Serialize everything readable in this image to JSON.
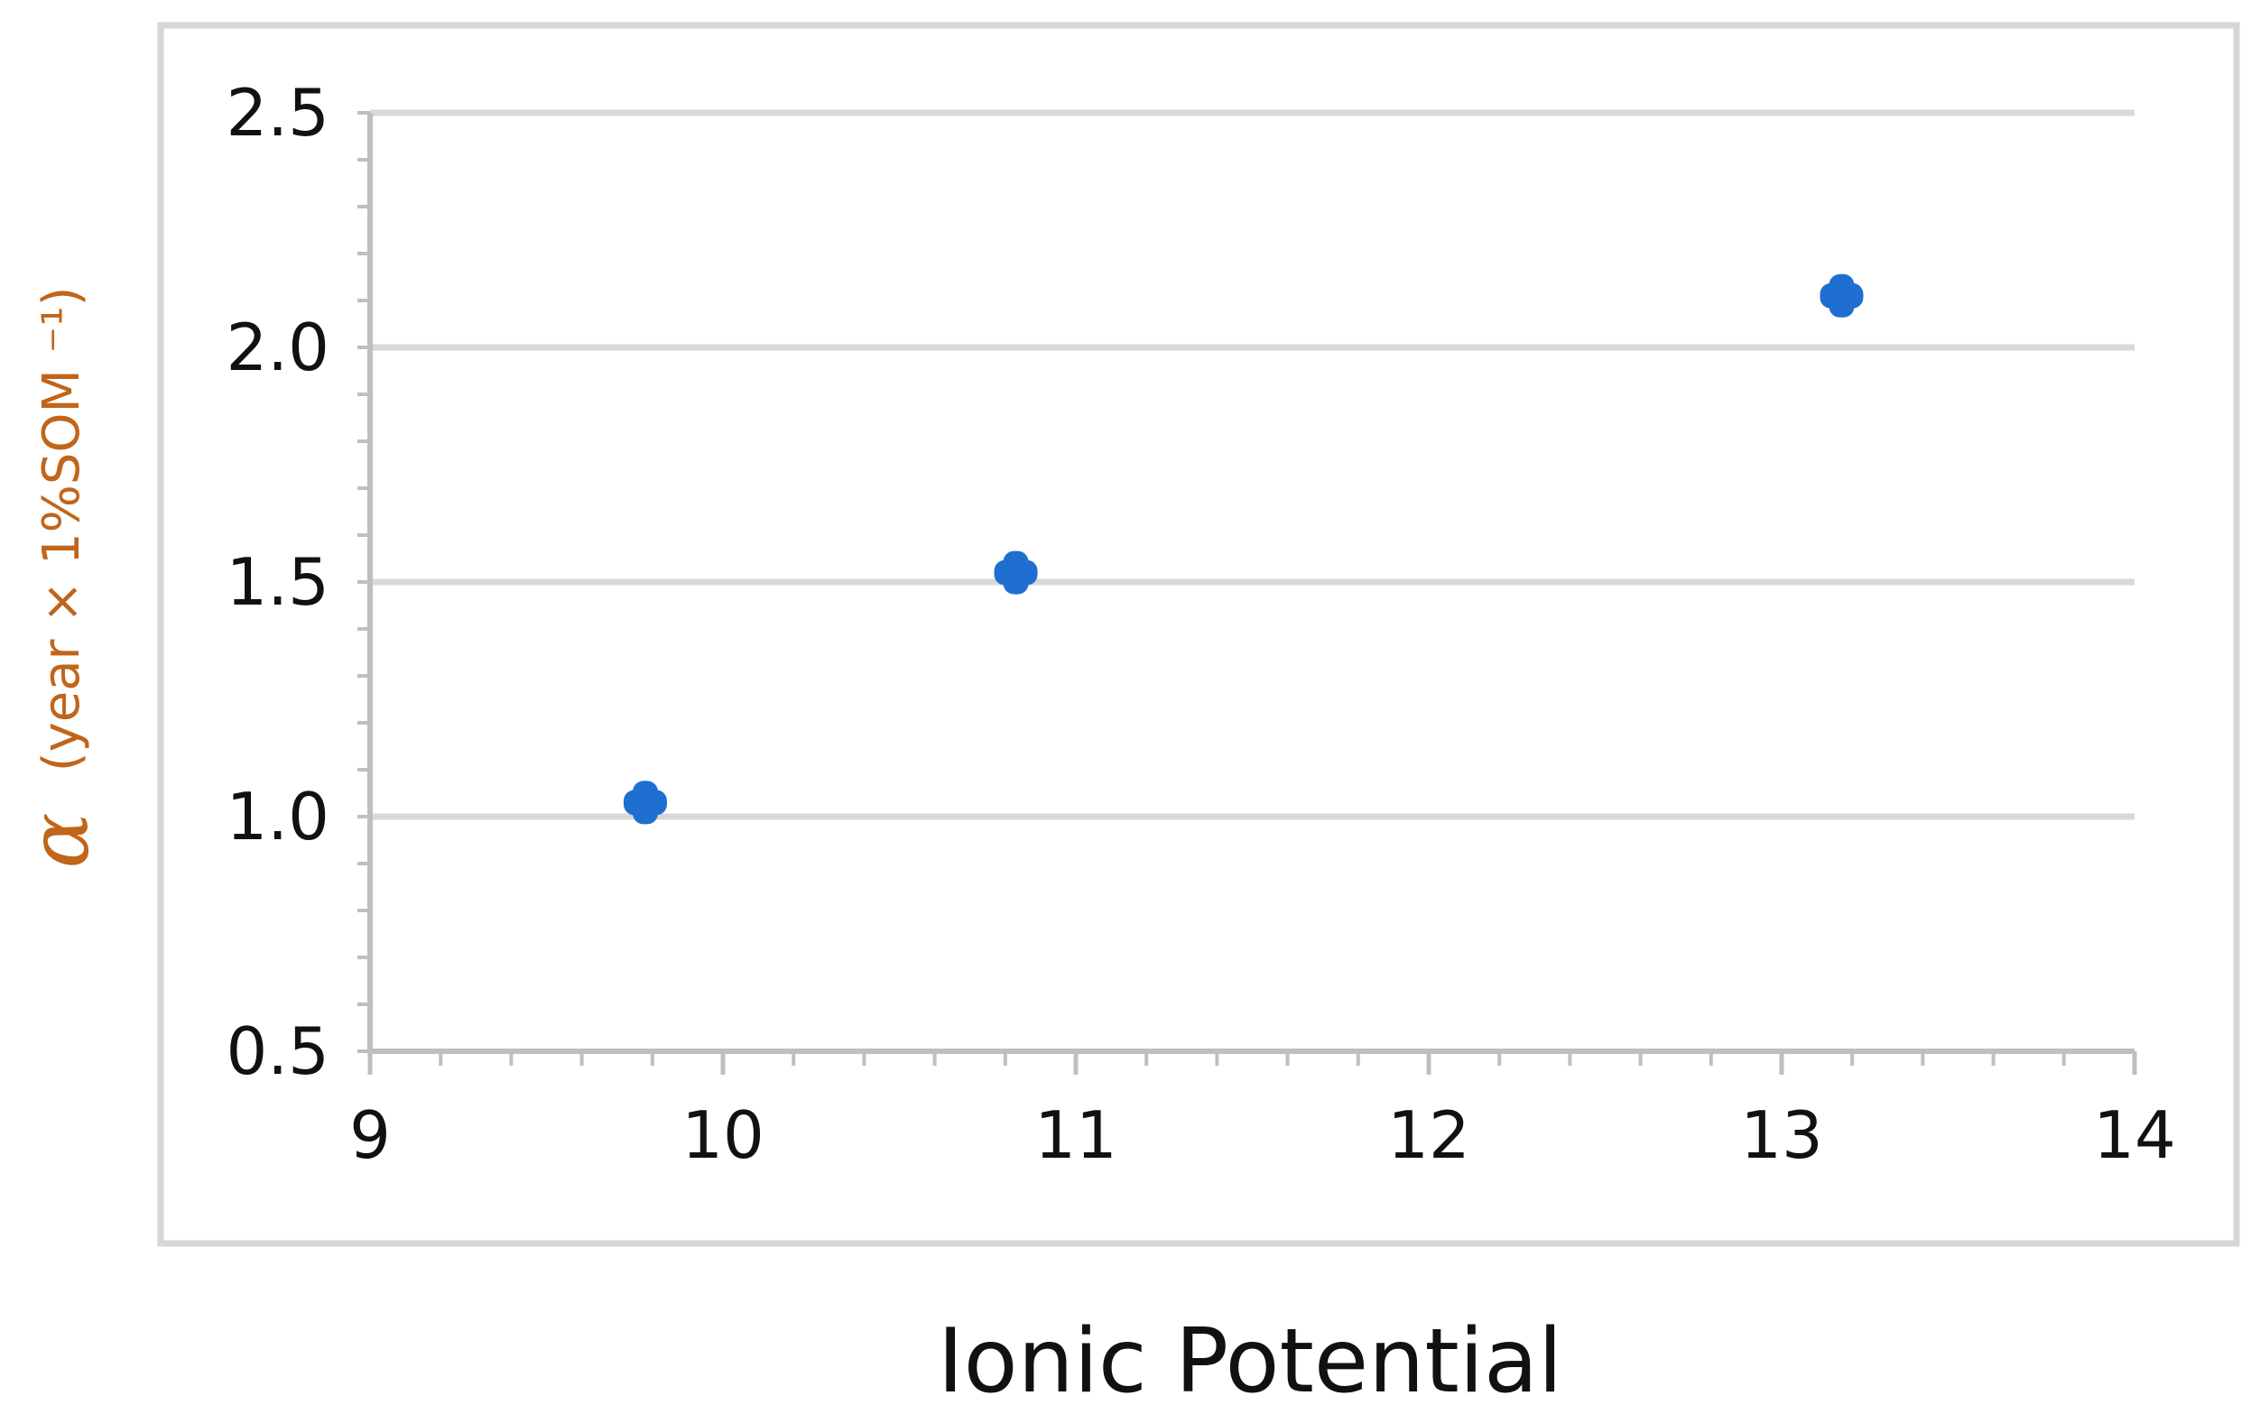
{
  "chart_data": {
    "type": "scatter",
    "x": [
      9.78,
      10.83,
      13.17
    ],
    "y": [
      1.03,
      1.52,
      2.11
    ],
    "xlim": [
      9,
      14
    ],
    "ylim": [
      0.5,
      2.5
    ],
    "x_ticks": [
      9,
      10,
      11,
      12,
      13,
      14
    ],
    "x_tick_labels": [
      "9",
      "10",
      "11",
      "12",
      "13",
      "14"
    ],
    "y_ticks": [
      0.5,
      1.0,
      1.5,
      2.0,
      2.5
    ],
    "y_tick_labels": [
      "0.5",
      "1.0",
      "1.5",
      "2.0",
      "2.5"
    ],
    "xlabel": "Ionic Potential",
    "ylabel_symbol": "α",
    "ylabel_unit": "(year × 1%SOM ⁻¹)",
    "grid": "horizontal",
    "legend": "none",
    "colors": {
      "marker": "#1f6fd1",
      "ylabel": "#c0651a",
      "gridline": "#d9d9d9",
      "frame": "#d6d6d6",
      "axis": "#bfbfbf"
    }
  }
}
